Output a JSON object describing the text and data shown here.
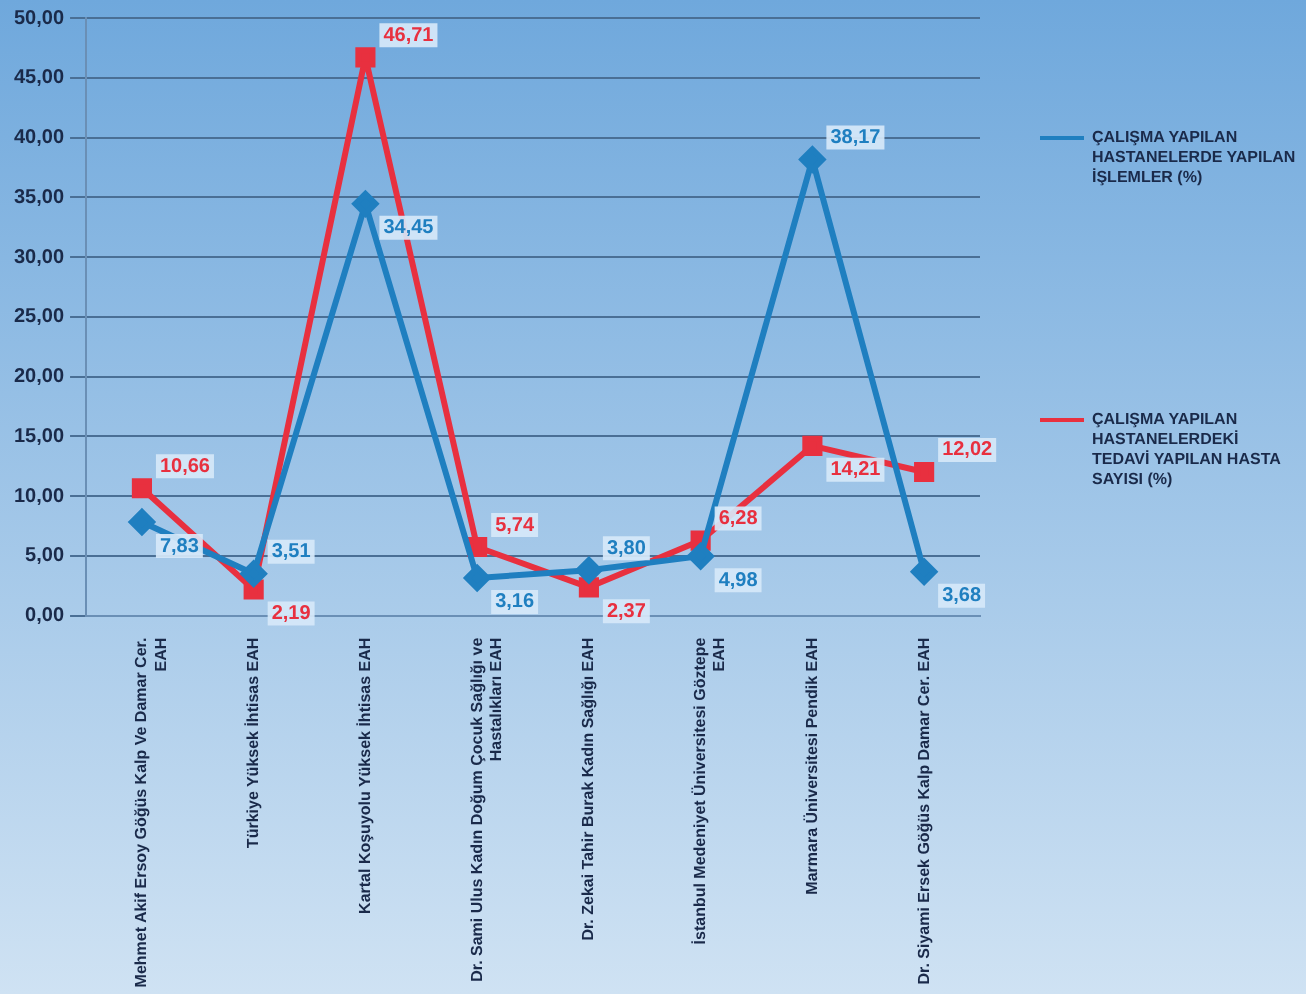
{
  "chart_data": {
    "type": "line",
    "categories": [
      "Mehmet Akif Ersoy Göğüs Kalp Ve Damar Cer. EAH",
      "Türkiye Yüksek İhtisas EAH",
      "Kartal Koşuyolu Yüksek İhtisas EAH",
      "Dr. Sami Ulus Kadın Doğum Çocuk Sağlığı ve Hastalıkları EAH",
      "Dr. Zekai Tahir Burak Kadın Sağlığı EAH",
      "İstanbul Medeniyet Üniversitesi Göztepe EAH",
      "Marmara Üniversitesi Pendik EAH",
      "Dr. Siyami Ersek Göğüs Kalp Damar Cer. EAH"
    ],
    "series": [
      {
        "name": "ÇALIŞMA YAPILAN HASTANELERDE YAPILAN İŞLEMLER (%)",
        "color": "#1f7fc0",
        "marker": "diamond",
        "values": [
          7.83,
          3.51,
          34.45,
          3.16,
          3.8,
          4.98,
          38.17,
          3.68
        ],
        "value_labels": [
          "7,83",
          "3,51",
          "34,45",
          "3,16",
          "3,80",
          "4,98",
          "38,17",
          "3,68"
        ]
      },
      {
        "name": "ÇALIŞMA YAPILAN HASTANELERDEKİ TEDAVİ YAPILAN HASTA SAYISI (%)",
        "color": "#e8303f",
        "marker": "square",
        "values": [
          10.66,
          2.19,
          46.71,
          5.74,
          2.37,
          6.28,
          14.21,
          12.02
        ],
        "value_labels": [
          "10,66",
          "2,19",
          "46,71",
          "5,74",
          "2,37",
          "6,28",
          "14,21",
          "12,02"
        ]
      }
    ],
    "ylim": [
      0,
      50
    ],
    "yticks": [
      {
        "value": 0,
        "label": "0,00"
      },
      {
        "value": 5,
        "label": "5,00"
      },
      {
        "value": 10,
        "label": "10,00"
      },
      {
        "value": 15,
        "label": "15,00"
      },
      {
        "value": 20,
        "label": "20,00"
      },
      {
        "value": 25,
        "label": "25,00"
      },
      {
        "value": 30,
        "label": "30,00"
      },
      {
        "value": 35,
        "label": "35,00"
      },
      {
        "value": 40,
        "label": "40,00"
      },
      {
        "value": 45,
        "label": "45,00"
      },
      {
        "value": 50,
        "label": "50,00"
      }
    ],
    "grid": "y",
    "legend": "right",
    "line_style": "solid"
  }
}
